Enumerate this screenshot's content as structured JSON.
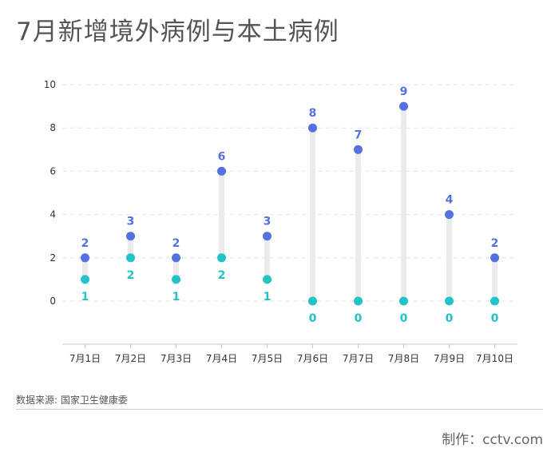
{
  "title": "7月新增境外病例与本土病例",
  "source": "数据来源: 国家卫生健康委",
  "credit": "制作：cctv.com",
  "colors": {
    "imported": "#5570e0",
    "local": "#22c3c8",
    "stem": "#ebebeb",
    "grid": "#e6e6e6",
    "axis": "#cccccc",
    "tick": "#333333"
  },
  "chart_data": {
    "type": "dumbbell",
    "title": "7月新增境外病例与本土病例",
    "categories": [
      "7月1日",
      "7月2日",
      "7月3日",
      "7月4日",
      "7月5日",
      "7月6日",
      "7月7日",
      "7月8日",
      "7月9日",
      "7月10日"
    ],
    "series": [
      {
        "values": [
          2,
          3,
          2,
          6,
          3,
          8,
          7,
          9,
          4,
          2
        ]
      },
      {
        "values": [
          1,
          2,
          1,
          2,
          1,
          0,
          0,
          0,
          0,
          0
        ]
      }
    ],
    "yticks": [
      0,
      2,
      4,
      6,
      8,
      10
    ],
    "ylim": [
      -2,
      11
    ],
    "grid": true,
    "legend": "none"
  }
}
